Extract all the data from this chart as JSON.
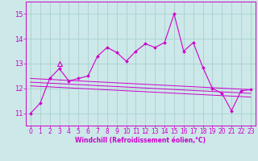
{
  "bg_color": "#cce8e8",
  "grid_color": "#aad0d0",
  "line_color": "#cc00cc",
  "xlabel": "Windchill (Refroidissement éolien,°C)",
  "ylim": [
    10.5,
    15.5
  ],
  "xlim": [
    -0.5,
    23.5
  ],
  "yticks": [
    11,
    12,
    13,
    14,
    15
  ],
  "xticks": [
    0,
    1,
    2,
    3,
    4,
    5,
    6,
    7,
    8,
    9,
    10,
    11,
    12,
    13,
    14,
    15,
    16,
    17,
    18,
    19,
    20,
    21,
    22,
    23
  ],
  "main_y": [
    11.0,
    11.4,
    12.4,
    12.8,
    12.3,
    12.4,
    12.5,
    13.3,
    13.65,
    13.45,
    13.1,
    13.5,
    13.8,
    13.65,
    13.85,
    15.0,
    13.5,
    13.85,
    12.85,
    12.0,
    11.8,
    11.1,
    11.9,
    11.95
  ],
  "trend1_start": 12.4,
  "trend1_end": 11.95,
  "trend2_start": 12.25,
  "trend2_end": 11.8,
  "trend3_start": 12.1,
  "trend3_end": 11.65,
  "triangle_x": 3,
  "triangle_y": 13.0,
  "xlabel_fontsize": 5.5,
  "tick_fontsize": 5.5,
  "ytick_fontsize": 6.0
}
